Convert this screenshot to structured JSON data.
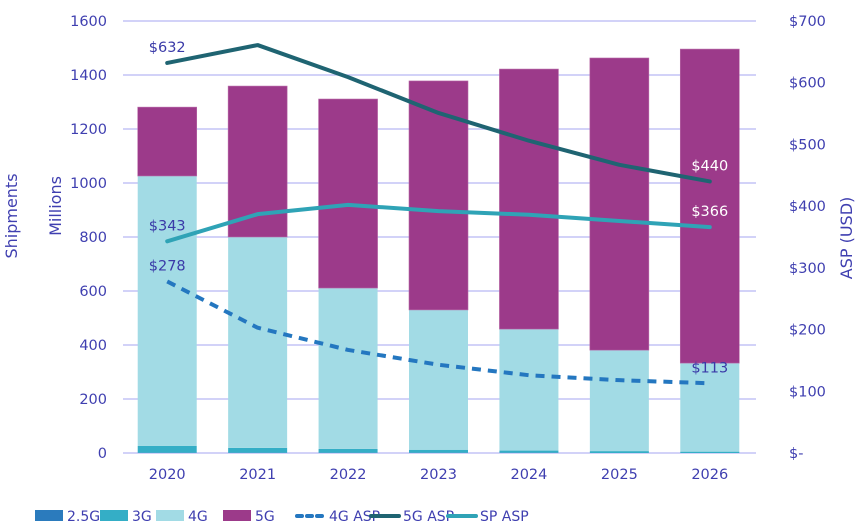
{
  "chart_data": {
    "type": "bar",
    "subtype": "stacked-bar-with-lines-dual-axis",
    "title": "",
    "categories": [
      "2020",
      "2021",
      "2022",
      "2023",
      "2024",
      "2025",
      "2026"
    ],
    "y_left": {
      "labels": [
        "Shipments",
        "Millions"
      ],
      "ylim": [
        0,
        1600
      ],
      "ticks": [
        "0",
        "200",
        "400",
        "600",
        "800",
        "1000",
        "1200",
        "1400",
        "1600"
      ]
    },
    "y_right": {
      "label": "ASP (USD)",
      "ylim": [
        0,
        700
      ],
      "ticks": [
        "$-",
        "$100",
        "$200",
        "$300",
        "$400",
        "$500",
        "$600",
        "$700"
      ]
    },
    "grid": true,
    "bar_series": [
      {
        "name": "2.5G",
        "color": "#2b7bbd",
        "values": [
          1,
          1,
          1,
          1,
          1,
          0,
          0
        ]
      },
      {
        "name": "3G",
        "color": "#34aec6",
        "values": [
          25,
          18,
          14,
          11,
          8,
          7,
          5
        ]
      },
      {
        "name": "4G",
        "color": "#a2dbe5",
        "values": [
          1000,
          781,
          596,
          518,
          450,
          374,
          328
        ]
      },
      {
        "name": "5G",
        "color": "#9c3a8a",
        "values": [
          255,
          559,
          700,
          848,
          963,
          1082,
          1163
        ]
      }
    ],
    "line_series": [
      {
        "name": "4G ASP",
        "color": "#2477c0",
        "style": "dashed",
        "axis": "right",
        "values": [
          278,
          203,
          167,
          143,
          126,
          118,
          113
        ],
        "labels": [
          {
            "index": 0,
            "text": "$278"
          },
          {
            "index": 6,
            "text": "$113"
          }
        ]
      },
      {
        "name": "5G ASP",
        "color": "#1f6472",
        "style": "solid",
        "axis": "right",
        "values": [
          632,
          661,
          609,
          551,
          506,
          467,
          440
        ],
        "labels": [
          {
            "index": 0,
            "text": "$632"
          },
          {
            "index": 6,
            "text": "$440"
          }
        ]
      },
      {
        "name": "SP ASP",
        "color": "#2fa3b6",
        "style": "solid",
        "axis": "right",
        "values": [
          343,
          387,
          402,
          392,
          386,
          376,
          366
        ],
        "labels": [
          {
            "index": 0,
            "text": "$343"
          },
          {
            "index": 6,
            "text": "$366"
          }
        ]
      }
    ],
    "legend": {
      "position": "bottom",
      "entries": [
        "2.5G",
        "3G",
        "4G",
        "5G",
        "4G ASP",
        "5G ASP",
        "SP ASP"
      ]
    }
  },
  "colors": {
    "axis_text": "#3f3fb0",
    "gridline": "#c3c3f5",
    "label_dark": "#3a3aa8",
    "label_light": "#ffffff"
  }
}
